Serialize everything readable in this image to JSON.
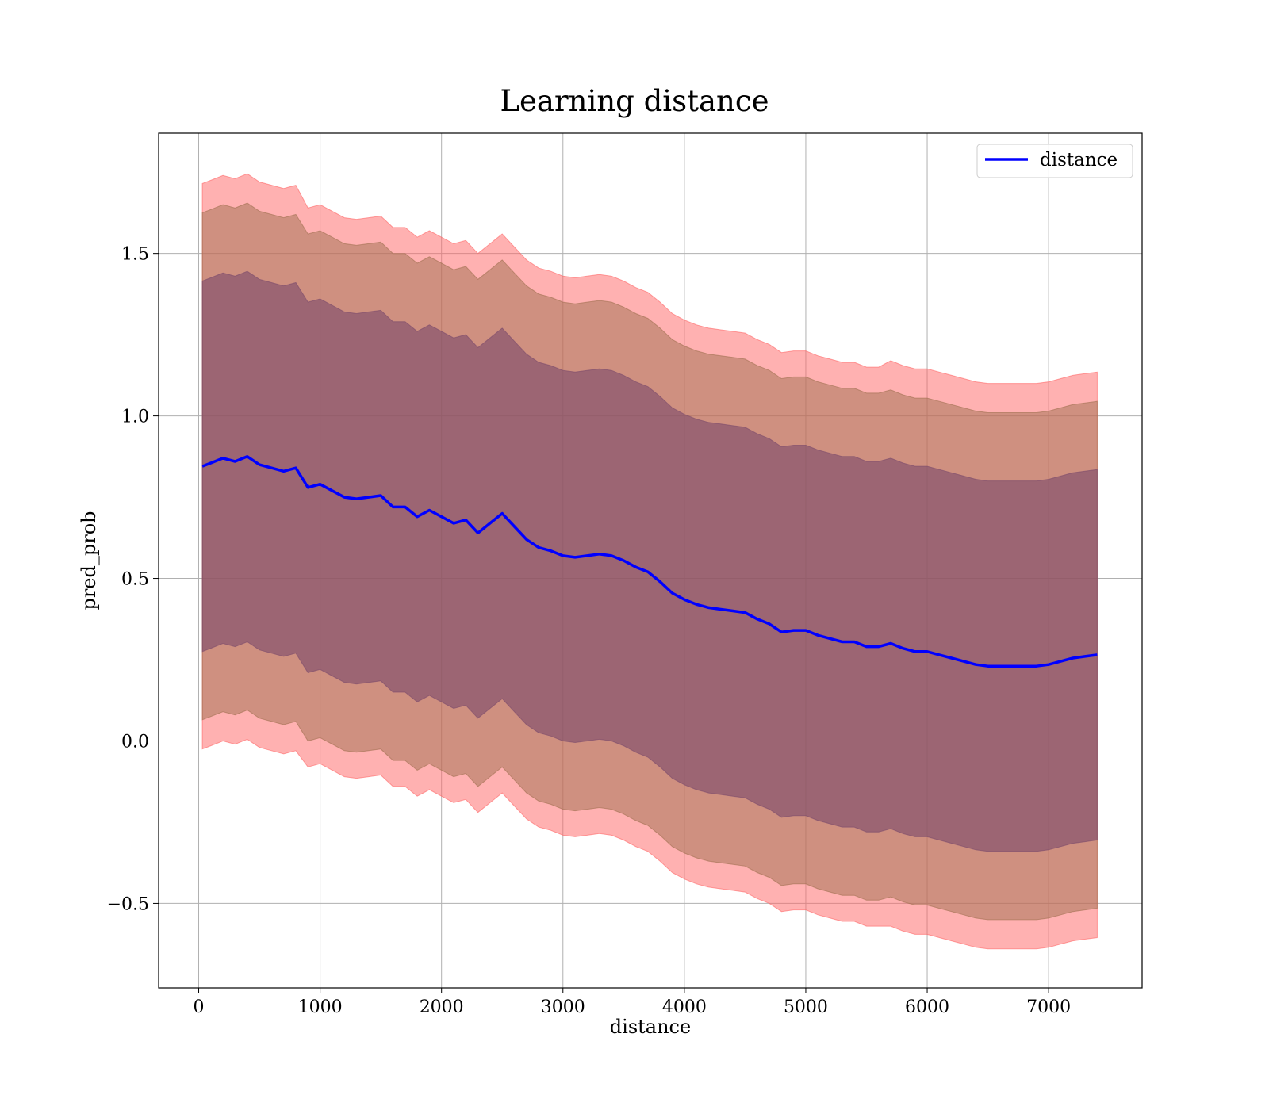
{
  "chart_data": {
    "type": "line",
    "title": "Learning distance",
    "xlabel": "distance",
    "ylabel": "pred_prob",
    "xlim": [
      -330,
      7770
    ],
    "ylim": [
      -0.76,
      1.87
    ],
    "x_ticks": [
      0,
      1000,
      2000,
      3000,
      4000,
      5000,
      6000,
      7000
    ],
    "x_tick_labels": [
      "0",
      "1000",
      "2000",
      "3000",
      "4000",
      "5000",
      "6000",
      "7000"
    ],
    "y_ticks": [
      -0.5,
      0.0,
      0.5,
      1.0,
      1.5
    ],
    "y_tick_labels": [
      "−0.5",
      "0.0",
      "0.5",
      "1.0",
      "1.5"
    ],
    "grid": true,
    "legend_position": "upper right",
    "series": [
      {
        "name": "distance",
        "color": "#0000ff",
        "x": [
          30,
          100,
          200,
          300,
          400,
          500,
          600,
          700,
          800,
          900,
          1000,
          1100,
          1200,
          1300,
          1400,
          1500,
          1600,
          1700,
          1800,
          1900,
          2000,
          2100,
          2200,
          2300,
          2400,
          2500,
          2600,
          2700,
          2800,
          2900,
          3000,
          3100,
          3200,
          3300,
          3400,
          3500,
          3600,
          3700,
          3800,
          3900,
          4000,
          4100,
          4200,
          4300,
          4400,
          4500,
          4600,
          4700,
          4800,
          4900,
          5000,
          5100,
          5200,
          5300,
          5400,
          5500,
          5600,
          5700,
          5800,
          5900,
          6000,
          6100,
          6200,
          6300,
          6400,
          6500,
          6600,
          6700,
          6800,
          6900,
          7000,
          7100,
          7200,
          7300,
          7400
        ],
        "y": [
          0.845,
          0.855,
          0.87,
          0.86,
          0.875,
          0.85,
          0.84,
          0.83,
          0.84,
          0.78,
          0.79,
          0.77,
          0.75,
          0.745,
          0.75,
          0.755,
          0.72,
          0.72,
          0.69,
          0.71,
          0.69,
          0.67,
          0.68,
          0.64,
          0.67,
          0.7,
          0.66,
          0.62,
          0.595,
          0.585,
          0.57,
          0.565,
          0.57,
          0.575,
          0.57,
          0.555,
          0.535,
          0.52,
          0.49,
          0.455,
          0.435,
          0.42,
          0.41,
          0.405,
          0.4,
          0.395,
          0.375,
          0.36,
          0.335,
          0.34,
          0.34,
          0.325,
          0.315,
          0.305,
          0.305,
          0.29,
          0.29,
          0.3,
          0.285,
          0.275,
          0.275,
          0.265,
          0.255,
          0.245,
          0.235,
          0.23,
          0.23,
          0.23,
          0.23,
          0.23,
          0.235,
          0.245,
          0.255,
          0.26,
          0.265
        ]
      }
    ],
    "bands": [
      {
        "color": "#ff6464",
        "opacity": 0.5,
        "upper_offset": [
          0.87,
          0.87,
          0.87,
          0.87,
          0.87,
          0.87,
          0.87,
          0.87,
          0.87,
          0.86,
          0.86,
          0.86,
          0.86,
          0.86,
          0.86,
          0.86,
          0.86,
          0.86,
          0.86,
          0.86,
          0.86,
          0.86,
          0.86,
          0.86,
          0.86,
          0.86,
          0.86,
          0.86,
          0.86,
          0.86,
          0.86,
          0.86,
          0.86,
          0.86,
          0.86,
          0.86,
          0.86,
          0.86,
          0.86,
          0.86,
          0.86,
          0.86,
          0.86,
          0.86,
          0.86,
          0.86,
          0.86,
          0.86,
          0.86,
          0.86,
          0.86,
          0.86,
          0.86,
          0.86,
          0.86,
          0.86,
          0.86,
          0.87,
          0.87,
          0.87,
          0.87,
          0.87,
          0.87,
          0.87,
          0.87,
          0.87,
          0.87,
          0.87,
          0.87,
          0.87,
          0.87,
          0.87,
          0.87,
          0.87,
          0.87
        ],
        "lower_offset": [
          0.87,
          0.87,
          0.87,
          0.87,
          0.87,
          0.87,
          0.87,
          0.87,
          0.87,
          0.86,
          0.86,
          0.86,
          0.86,
          0.86,
          0.86,
          0.86,
          0.86,
          0.86,
          0.86,
          0.86,
          0.86,
          0.86,
          0.86,
          0.86,
          0.86,
          0.86,
          0.86,
          0.86,
          0.86,
          0.86,
          0.86,
          0.86,
          0.86,
          0.86,
          0.86,
          0.86,
          0.86,
          0.86,
          0.86,
          0.86,
          0.86,
          0.86,
          0.86,
          0.86,
          0.86,
          0.86,
          0.86,
          0.86,
          0.86,
          0.86,
          0.86,
          0.86,
          0.86,
          0.86,
          0.86,
          0.86,
          0.86,
          0.87,
          0.87,
          0.87,
          0.87,
          0.87,
          0.87,
          0.87,
          0.87,
          0.87,
          0.87,
          0.87,
          0.87,
          0.87,
          0.87,
          0.87,
          0.87,
          0.87,
          0.87
        ]
      },
      {
        "color": "#a07050",
        "opacity": 0.5,
        "upper_offset": [
          0.78,
          0.78,
          0.78,
          0.78,
          0.78,
          0.78,
          0.78,
          0.78,
          0.78,
          0.78,
          0.78,
          0.78,
          0.78,
          0.78,
          0.78,
          0.78,
          0.78,
          0.78,
          0.78,
          0.78,
          0.78,
          0.78,
          0.78,
          0.78,
          0.78,
          0.78,
          0.78,
          0.78,
          0.78,
          0.78,
          0.78,
          0.78,
          0.78,
          0.78,
          0.78,
          0.78,
          0.78,
          0.78,
          0.78,
          0.78,
          0.78,
          0.78,
          0.78,
          0.78,
          0.78,
          0.78,
          0.78,
          0.78,
          0.78,
          0.78,
          0.78,
          0.78,
          0.78,
          0.78,
          0.78,
          0.78,
          0.78,
          0.78,
          0.78,
          0.78,
          0.78,
          0.78,
          0.78,
          0.78,
          0.78,
          0.78,
          0.78,
          0.78,
          0.78,
          0.78,
          0.78,
          0.78,
          0.78,
          0.78,
          0.78
        ],
        "lower_offset": [
          0.78,
          0.78,
          0.78,
          0.78,
          0.78,
          0.78,
          0.78,
          0.78,
          0.78,
          0.78,
          0.78,
          0.78,
          0.78,
          0.78,
          0.78,
          0.78,
          0.78,
          0.78,
          0.78,
          0.78,
          0.78,
          0.78,
          0.78,
          0.78,
          0.78,
          0.78,
          0.78,
          0.78,
          0.78,
          0.78,
          0.78,
          0.78,
          0.78,
          0.78,
          0.78,
          0.78,
          0.78,
          0.78,
          0.78,
          0.78,
          0.78,
          0.78,
          0.78,
          0.78,
          0.78,
          0.78,
          0.78,
          0.78,
          0.78,
          0.78,
          0.78,
          0.78,
          0.78,
          0.78,
          0.78,
          0.78,
          0.78,
          0.78,
          0.78,
          0.78,
          0.78,
          0.78,
          0.78,
          0.78,
          0.78,
          0.78,
          0.78,
          0.78,
          0.78,
          0.78,
          0.78,
          0.78,
          0.78,
          0.78,
          0.78
        ]
      },
      {
        "color": "#7a4a6a",
        "opacity": 0.6,
        "upper_offset": [
          0.57,
          0.57,
          0.57,
          0.57,
          0.57,
          0.57,
          0.57,
          0.57,
          0.57,
          0.57,
          0.57,
          0.57,
          0.57,
          0.57,
          0.57,
          0.57,
          0.57,
          0.57,
          0.57,
          0.57,
          0.57,
          0.57,
          0.57,
          0.57,
          0.57,
          0.57,
          0.57,
          0.57,
          0.57,
          0.57,
          0.57,
          0.57,
          0.57,
          0.57,
          0.57,
          0.57,
          0.57,
          0.57,
          0.57,
          0.57,
          0.57,
          0.57,
          0.57,
          0.57,
          0.57,
          0.57,
          0.57,
          0.57,
          0.57,
          0.57,
          0.57,
          0.57,
          0.57,
          0.57,
          0.57,
          0.57,
          0.57,
          0.57,
          0.57,
          0.57,
          0.57,
          0.57,
          0.57,
          0.57,
          0.57,
          0.57,
          0.57,
          0.57,
          0.57,
          0.57,
          0.57,
          0.57,
          0.57,
          0.57,
          0.57
        ],
        "lower_offset": [
          0.57,
          0.57,
          0.57,
          0.57,
          0.57,
          0.57,
          0.57,
          0.57,
          0.57,
          0.57,
          0.57,
          0.57,
          0.57,
          0.57,
          0.57,
          0.57,
          0.57,
          0.57,
          0.57,
          0.57,
          0.57,
          0.57,
          0.57,
          0.57,
          0.57,
          0.57,
          0.57,
          0.57,
          0.57,
          0.57,
          0.57,
          0.57,
          0.57,
          0.57,
          0.57,
          0.57,
          0.57,
          0.57,
          0.57,
          0.57,
          0.57,
          0.57,
          0.57,
          0.57,
          0.57,
          0.57,
          0.57,
          0.57,
          0.57,
          0.57,
          0.57,
          0.57,
          0.57,
          0.57,
          0.57,
          0.57,
          0.57,
          0.57,
          0.57,
          0.57,
          0.57,
          0.57,
          0.57,
          0.57,
          0.57,
          0.57,
          0.57,
          0.57,
          0.57,
          0.57,
          0.57,
          0.57,
          0.57,
          0.57,
          0.57
        ]
      }
    ]
  }
}
